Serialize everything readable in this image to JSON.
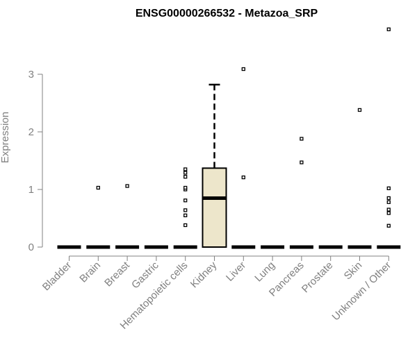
{
  "chart_data": {
    "type": "boxplot",
    "title": "ENSG00000266532 - Metazoa_SRP",
    "xlabel": "",
    "ylabel": "Expression",
    "ylim": [
      0,
      3.8
    ],
    "yticks": [
      0,
      1,
      2,
      3
    ],
    "grid": false,
    "legend": "none",
    "colors": {
      "box_fill": "#ede6cb",
      "line": "#000000",
      "axis": "#808080"
    },
    "categories": [
      "Bladder",
      "Brain",
      "Breast",
      "Gastric",
      "Hematopoietic cells",
      "Kidney",
      "Liver",
      "Lung",
      "Pancreas",
      "Prostate",
      "Skin",
      "Unknown / Other"
    ],
    "boxes": [
      {
        "q1": 0,
        "median": 0,
        "q3": 0,
        "whisker_low": 0,
        "whisker_high": 0
      },
      {
        "q1": 0,
        "median": 0,
        "q3": 0,
        "whisker_low": 0,
        "whisker_high": 0
      },
      {
        "q1": 0,
        "median": 0,
        "q3": 0,
        "whisker_low": 0,
        "whisker_high": 0
      },
      {
        "q1": 0,
        "median": 0,
        "q3": 0,
        "whisker_low": 0,
        "whisker_high": 0
      },
      {
        "q1": 0,
        "median": 0,
        "q3": 0,
        "whisker_low": 0,
        "whisker_high": 0
      },
      {
        "q1": 0,
        "median": 0.85,
        "q3": 1.37,
        "whisker_low": 0,
        "whisker_high": 2.82
      },
      {
        "q1": 0,
        "median": 0,
        "q3": 0,
        "whisker_low": 0,
        "whisker_high": 0
      },
      {
        "q1": 0,
        "median": 0,
        "q3": 0,
        "whisker_low": 0,
        "whisker_high": 0
      },
      {
        "q1": 0,
        "median": 0,
        "q3": 0,
        "whisker_low": 0,
        "whisker_high": 0
      },
      {
        "q1": 0,
        "median": 0,
        "q3": 0,
        "whisker_low": 0,
        "whisker_high": 0
      },
      {
        "q1": 0,
        "median": 0,
        "q3": 0,
        "whisker_low": 0,
        "whisker_high": 0
      },
      {
        "q1": 0,
        "median": 0,
        "q3": 0,
        "whisker_low": 0,
        "whisker_high": 0
      }
    ],
    "outliers": [
      [],
      [
        1.03
      ],
      [
        1.06
      ],
      [],
      [
        0.38,
        0.55,
        0.64,
        0.81,
        1.0,
        1.03,
        1.22,
        1.29,
        1.35
      ],
      [],
      [
        1.21,
        3.09
      ],
      [],
      [
        1.47,
        1.88
      ],
      [],
      [
        2.38
      ],
      [
        0.37,
        0.59,
        0.65,
        0.78,
        0.85,
        1.02,
        3.78
      ]
    ]
  }
}
